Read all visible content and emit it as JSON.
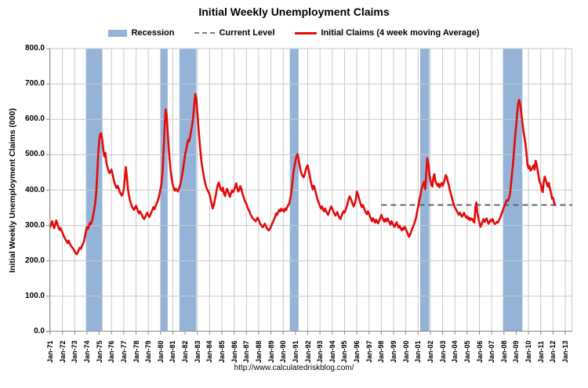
{
  "title": "Initial Weekly Unemployment Claims",
  "footer": {
    "url": "http://www.calculatedriskblog.com/"
  },
  "colors": {
    "recession": "#95b3d7",
    "current_level": "#666666",
    "claims": "#e30b0b",
    "grid": "#c9c9c9",
    "axis": "#8c8c8c"
  },
  "legend": [
    {
      "label": "Recession",
      "type": "box"
    },
    {
      "label": "Current Level",
      "type": "dashed"
    },
    {
      "label": "Initial Claims (4 week moving Average)",
      "type": "line"
    }
  ],
  "chart_data": {
    "type": "line",
    "title": "Initial Weekly Unemployment Claims",
    "xlabel": "",
    "ylabel": "Initial Weekly Unemployment Claims (000)",
    "ylim": [
      0,
      800
    ],
    "ytick_step": 100,
    "grid": true,
    "legend_position": "top",
    "ytick_labels": [
      "0.0",
      "100.0",
      "200.0",
      "300.0",
      "400.0",
      "500.0",
      "600.0",
      "700.0",
      "800.0"
    ],
    "x_start_year": 1971,
    "xtick_labels": [
      "Jan-71",
      "Jan-72",
      "Jan-73",
      "Jan-74",
      "Jan-75",
      "Jan-76",
      "Jan-77",
      "Jan-78",
      "Jan-79",
      "Jan-80",
      "Jan-81",
      "Jan-82",
      "Jan-83",
      "Jan-84",
      "Jan-85",
      "Jan-86",
      "Jan-87",
      "Jan-88",
      "Jan-89",
      "Jan-90",
      "Jan-91",
      "Jan-92",
      "Jan-93",
      "Jan-94",
      "Jan-95",
      "Jan-96",
      "Jan-97",
      "Jan-98",
      "Jan-99",
      "Jan-00",
      "Jan-01",
      "Jan-02",
      "Jan-03",
      "Jan-04",
      "Jan-05",
      "Jan-06",
      "Jan-07",
      "Jan-08",
      "Jan-09",
      "Jan-10",
      "Jan-11",
      "Jan-12",
      "Jan-13"
    ],
    "current_level": {
      "value": 358,
      "start_year": 1998.0
    },
    "recessions": [
      [
        1973.92,
        1975.25
      ],
      [
        1980.0,
        1980.58
      ],
      [
        1981.54,
        1982.92
      ],
      [
        1990.54,
        1991.25
      ],
      [
        2001.17,
        2001.92
      ],
      [
        2007.92,
        2009.5
      ]
    ],
    "series": [
      {
        "name": "Initial Claims (4 week moving Average)",
        "start_year": 1971,
        "interval_months": 1,
        "values": [
          296,
          304,
          312,
          300,
          292,
          302,
          314,
          306,
          296,
          288,
          293,
          286,
          280,
          272,
          266,
          260,
          256,
          250,
          257,
          250,
          244,
          240,
          236,
          232,
          227,
          221,
          219,
          224,
          231,
          237,
          234,
          241,
          247,
          254,
          268,
          284,
          296,
          290,
          299,
          308,
          304,
          314,
          328,
          344,
          362,
          392,
          442,
          504,
          542,
          558,
          561,
          540,
          515,
          495,
          505,
          478,
          465,
          455,
          448,
          452,
          458,
          445,
          432,
          420,
          412,
          406,
          412,
          405,
          396,
          390,
          384,
          390,
          402,
          432,
          465,
          438,
          405,
          385,
          372,
          362,
          354,
          348,
          344,
          350,
          356,
          348,
          340,
          334,
          340,
          334,
          328,
          322,
          318,
          324,
          330,
          336,
          330,
          324,
          330,
          337,
          344,
          352,
          346,
          354,
          361,
          368,
          377,
          389,
          403,
          421,
          453,
          512,
          580,
          628,
          611,
          564,
          519,
          482,
          452,
          430,
          415,
          405,
          398,
          404,
          400,
          396,
          404,
          413,
          425,
          441,
          459,
          479,
          501,
          513,
          528,
          542,
          538,
          553,
          569,
          585,
          609,
          641,
          672,
          659,
          621,
          581,
          545,
          511,
          481,
          461,
          445,
          429,
          416,
          406,
          400,
          394,
          387,
          374,
          361,
          348,
          356,
          371,
          385,
          401,
          415,
          421,
          410,
          401,
          398,
          407,
          391,
          383,
          394,
          404,
          397,
          388,
          381,
          392,
          399,
          394,
          400,
          409,
          419,
          405,
          396,
          401,
          411,
          404,
          391,
          382,
          373,
          366,
          361,
          352,
          346,
          339,
          331,
          326,
          321,
          318,
          315,
          312,
          317,
          322,
          316,
          308,
          303,
          298,
          295,
          300,
          305,
          298,
          292,
          288,
          286,
          291,
          296,
          304,
          310,
          317,
          324,
          334,
          330,
          337,
          344,
          340,
          347,
          342,
          345,
          339,
          348,
          344,
          352,
          358,
          362,
          376,
          395,
          420,
          448,
          468,
          482,
          496,
          502,
          488,
          470,
          455,
          446,
          440,
          436,
          444,
          456,
          466,
          470,
          455,
          440,
          425,
          412,
          402,
          412,
          404,
          392,
          380,
          370,
          362,
          355,
          348,
          354,
          344,
          340,
          348,
          340,
          334,
          330,
          340,
          346,
          354,
          348,
          340,
          334,
          328,
          332,
          338,
          328,
          322,
          318,
          326,
          334,
          340,
          336,
          344,
          352,
          362,
          374,
          382,
          376,
          368,
          360,
          354,
          362,
          372,
          396,
          388,
          378,
          368,
          358,
          352,
          358,
          350,
          342,
          336,
          332,
          340,
          333,
          325,
          318,
          312,
          320,
          314,
          308,
          316,
          310,
          306,
          314,
          321,
          330,
          322,
          316,
          310,
          318,
          312,
          320,
          314,
          308,
          302,
          312,
          306,
          300,
          296,
          303,
          309,
          300,
          294,
          299,
          291,
          286,
          293,
          289,
          296,
          290,
          283,
          276,
          268,
          273,
          281,
          289,
          296,
          303,
          312,
          322,
          338,
          352,
          368,
          382,
          398,
          408,
          418,
          424,
          402,
          450,
          490,
          478,
          445,
          430,
          415,
          410,
          438,
          445,
          425,
          418,
          412,
          418,
          408,
          415,
          420,
          412,
          420,
          430,
          442,
          438,
          425,
          415,
          400,
          390,
          380,
          368,
          358,
          352,
          346,
          340,
          335,
          330,
          336,
          330,
          325,
          330,
          336,
          328,
          322,
          326,
          318,
          322,
          315,
          320,
          318,
          312,
          308,
          350,
          365,
          335,
          320,
          308,
          296,
          302,
          310,
          318,
          310,
          315,
          320,
          312,
          305,
          310,
          316,
          312,
          318,
          308,
          304,
          306,
          310,
          308,
          314,
          320,
          327,
          336,
          344,
          352,
          358,
          366,
          372,
          370,
          378,
          390,
          420,
          448,
          478,
          515,
          552,
          582,
          618,
          645,
          655,
          640,
          618,
          590,
          568,
          550,
          532,
          505,
          472,
          462,
          468,
          455,
          458,
          465,
          470,
          458,
          483,
          472,
          456,
          438,
          422,
          418,
          400,
          394,
          425,
          438,
          428,
          418,
          410,
          420,
          404,
          394,
          376,
          378,
          366,
          358
        ]
      }
    ]
  }
}
